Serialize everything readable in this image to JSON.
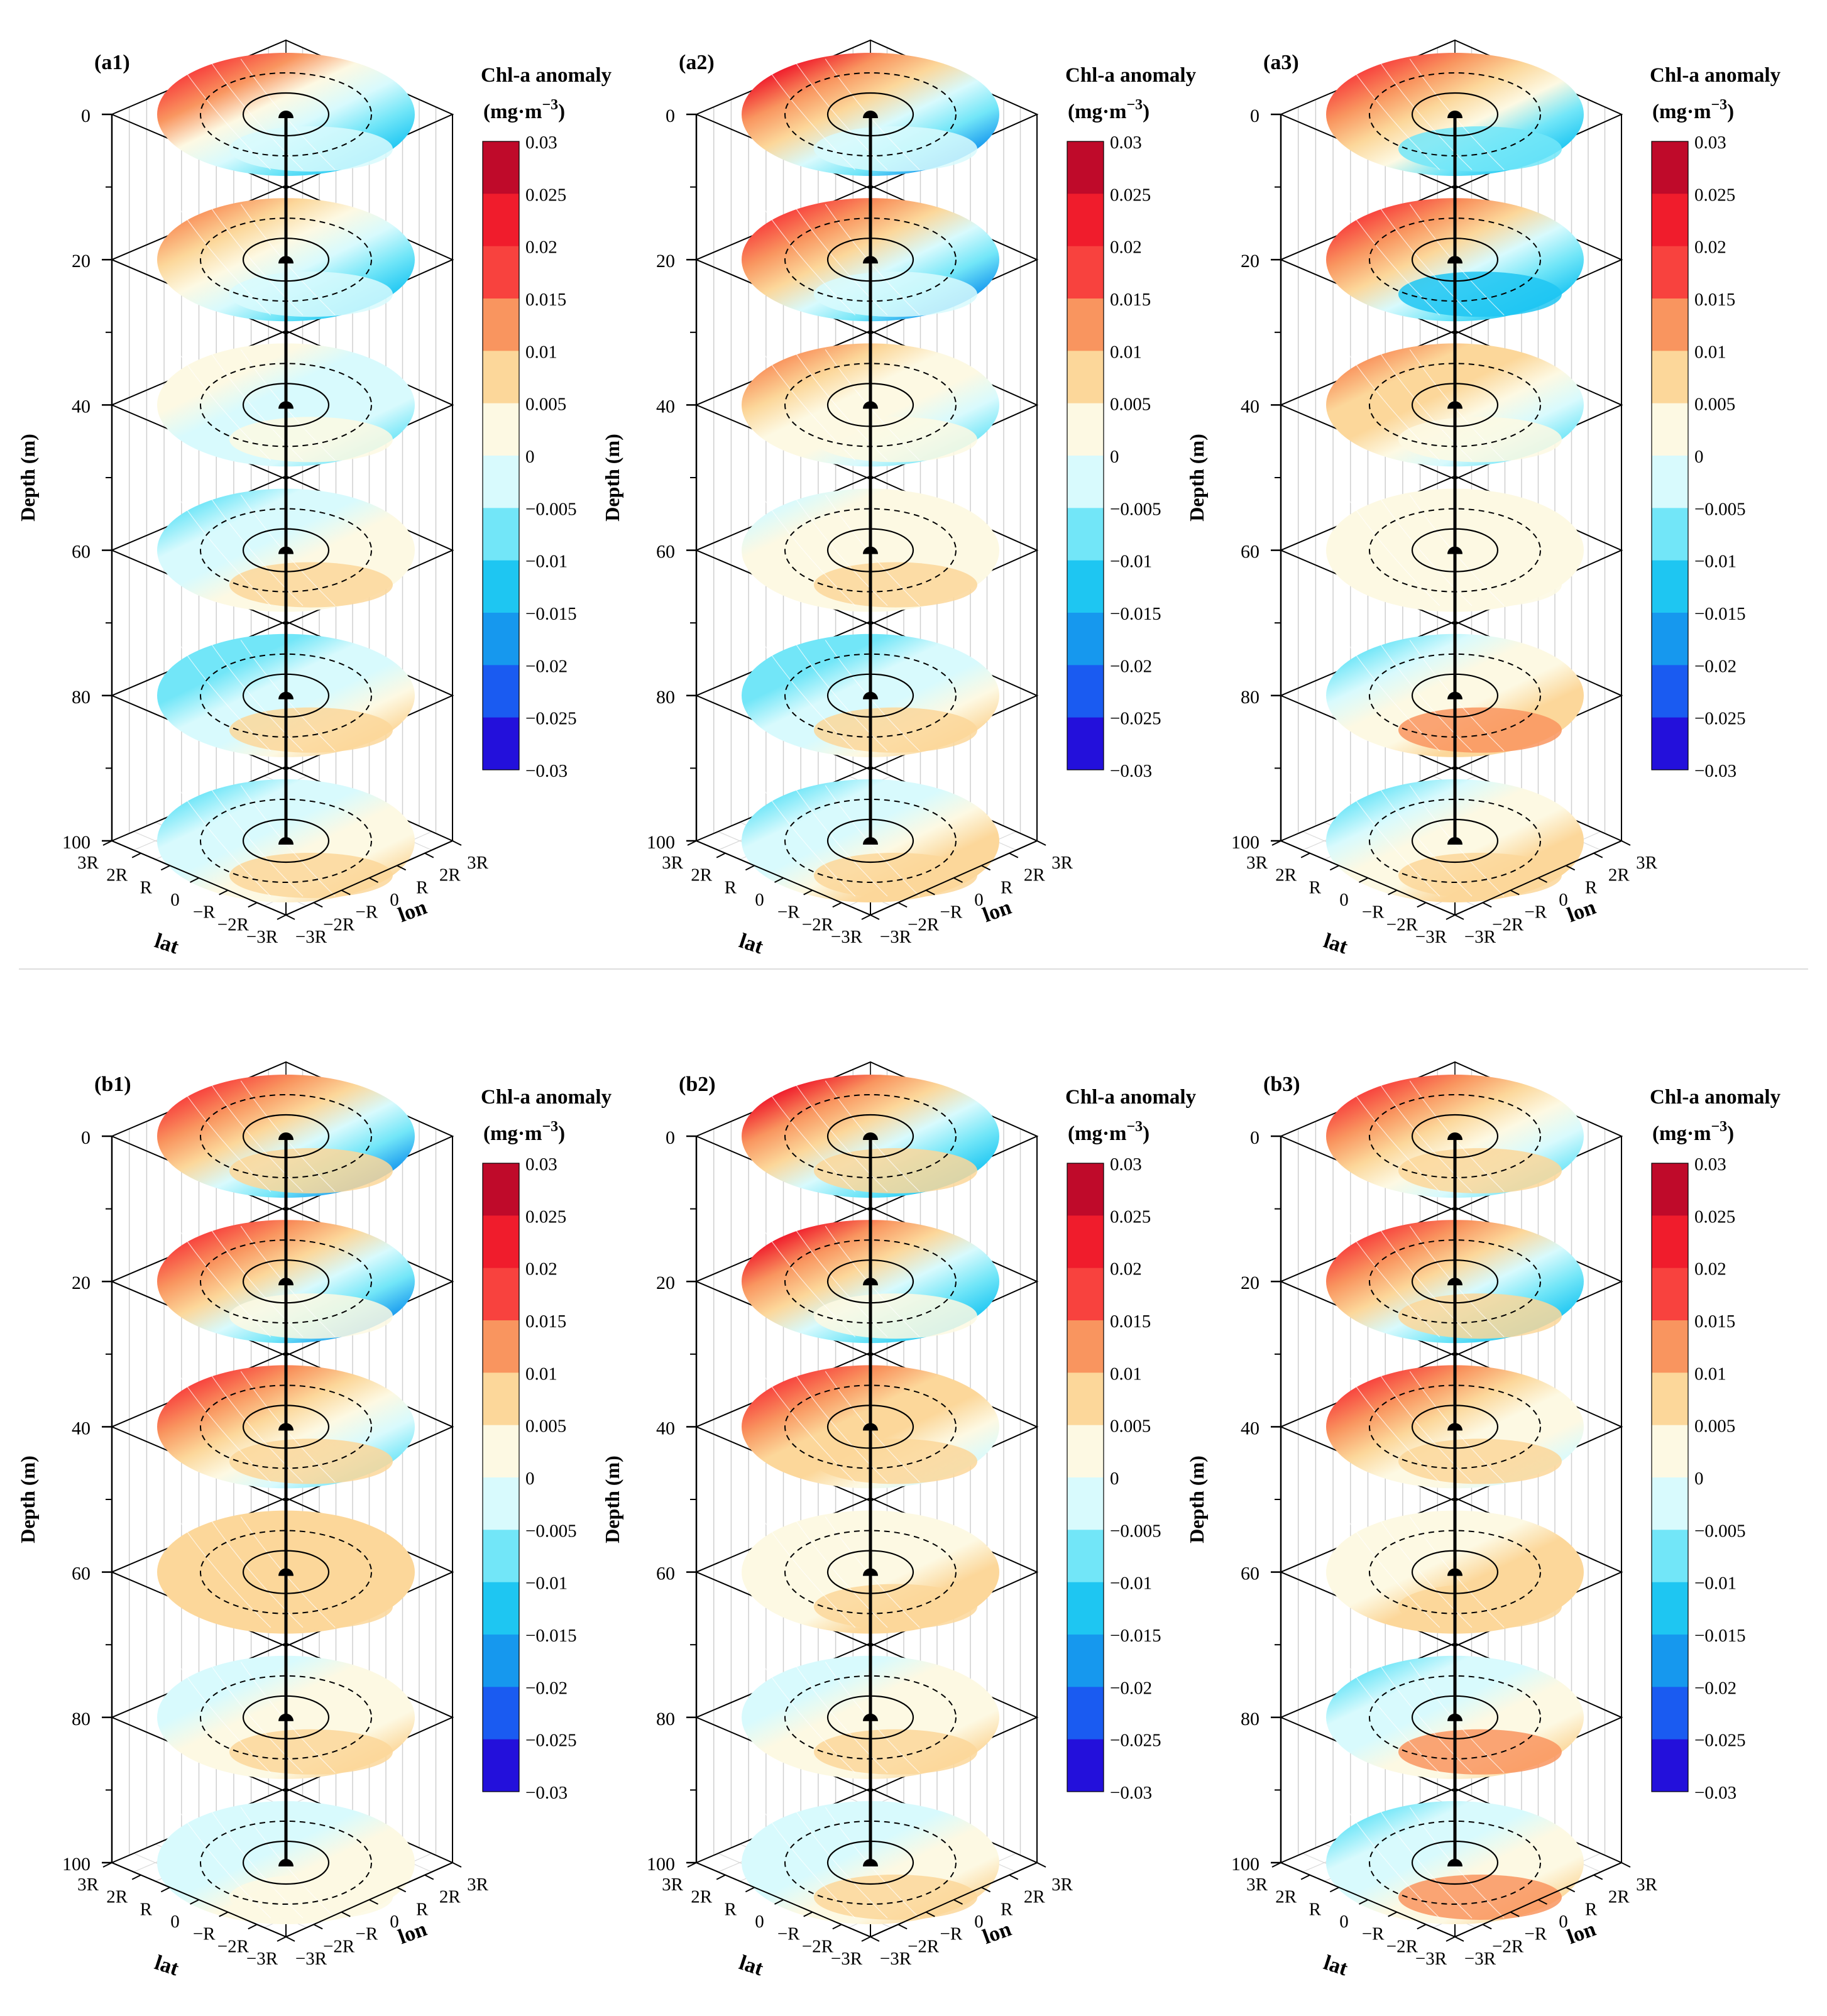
{
  "legend": {
    "title": "Chl-a anomaly",
    "unit_base": "(mg·m",
    "unit_exp": "−3",
    "unit_close": ")",
    "ticks": [
      "0.03",
      "0.025",
      "0.02",
      "0.015",
      "0.01",
      "0.005",
      "0",
      "−0.005",
      "−0.01",
      "−0.015",
      "−0.02",
      "−0.025",
      "−0.03"
    ],
    "colors": [
      "#bf0a2a",
      "#f01c2c",
      "#f8423e",
      "#f9955f",
      "#fcd79a",
      "#fdf9e3",
      "#d8fafd",
      "#72e6f8",
      "#1ec6f2",
      "#1698ee",
      "#1a5bf1",
      "#2310db"
    ]
  },
  "axes": {
    "depth_label": "Depth (m)",
    "depth_ticks": [
      "0",
      "20",
      "40",
      "60",
      "80",
      "100"
    ],
    "lat_label": "lat",
    "lon_label": "lon",
    "lat_ticks": [
      "3R",
      "2R",
      "R",
      "0",
      "−R",
      "−2R",
      "−3R"
    ],
    "lon_ticks": [
      "−3R",
      "−2R",
      "−R",
      "0",
      "R",
      "2R",
      "3R"
    ]
  },
  "chart_data": [
    {
      "id": "a1",
      "label": "(a1)",
      "type": "heatmap",
      "depths_m": [
        0,
        20,
        40,
        60,
        80,
        100
      ],
      "west_anomaly_mg_m3": [
        0.022,
        0.018,
        0.006,
        -0.008,
        -0.012,
        -0.01
      ],
      "east_anomaly_mg_m3": [
        -0.02,
        -0.02,
        -0.009,
        0.007,
        0.008,
        0.008
      ],
      "south_anomaly_mg_m3": [
        -0.004,
        -0.005,
        0.002,
        0.006,
        0.007,
        0.006
      ]
    },
    {
      "id": "a2",
      "label": "(a2)",
      "type": "heatmap",
      "depths_m": [
        0,
        20,
        40,
        60,
        80,
        100
      ],
      "west_anomaly_mg_m3": [
        0.028,
        0.026,
        0.017,
        -0.002,
        -0.012,
        -0.009
      ],
      "east_anomaly_mg_m3": [
        -0.024,
        -0.022,
        -0.012,
        0.006,
        0.009,
        0.011
      ],
      "south_anomaly_mg_m3": [
        -0.003,
        -0.002,
        0.004,
        0.006,
        0.009,
        0.008
      ]
    },
    {
      "id": "a3",
      "label": "(a3)",
      "type": "heatmap",
      "depths_m": [
        0,
        20,
        40,
        60,
        80,
        100
      ],
      "west_anomaly_mg_m3": [
        0.023,
        0.021,
        0.017,
        0.003,
        -0.008,
        -0.008
      ],
      "east_anomaly_mg_m3": [
        -0.017,
        -0.016,
        -0.009,
        0.004,
        0.012,
        0.011
      ],
      "south_anomaly_mg_m3": [
        -0.006,
        -0.01,
        0.003,
        0.004,
        0.011,
        0.008
      ]
    },
    {
      "id": "b1",
      "label": "(b1)",
      "type": "heatmap",
      "depths_m": [
        0,
        20,
        40,
        60,
        80,
        100
      ],
      "west_anomaly_mg_m3": [
        0.027,
        0.027,
        0.021,
        0.008,
        -0.005,
        -0.005
      ],
      "east_anomaly_mg_m3": [
        -0.024,
        -0.024,
        -0.011,
        0.007,
        0.007,
        0.006
      ],
      "south_anomaly_mg_m3": [
        0.005,
        0.004,
        0.006,
        0.008,
        0.008,
        0.004
      ]
    },
    {
      "id": "b2",
      "label": "(b2)",
      "type": "heatmap",
      "depths_m": [
        0,
        20,
        40,
        60,
        80,
        100
      ],
      "west_anomaly_mg_m3": [
        0.027,
        0.028,
        0.021,
        0.003,
        -0.006,
        -0.007
      ],
      "east_anomaly_mg_m3": [
        -0.021,
        -0.022,
        -0.006,
        0.006,
        0.009,
        0.008
      ],
      "south_anomaly_mg_m3": [
        0.005,
        0.003,
        0.007,
        0.006,
        0.007,
        0.006
      ]
    },
    {
      "id": "b3",
      "label": "(b3)",
      "type": "heatmap",
      "depths_m": [
        0,
        20,
        40,
        60,
        80,
        100
      ],
      "west_anomaly_mg_m3": [
        0.022,
        0.024,
        0.022,
        0.004,
        -0.008,
        -0.009
      ],
      "east_anomaly_mg_m3": [
        -0.014,
        -0.019,
        -0.008,
        0.006,
        0.008,
        0.009
      ],
      "south_anomaly_mg_m3": [
        0.007,
        0.009,
        0.009,
        0.005,
        0.012,
        0.011
      ]
    }
  ]
}
